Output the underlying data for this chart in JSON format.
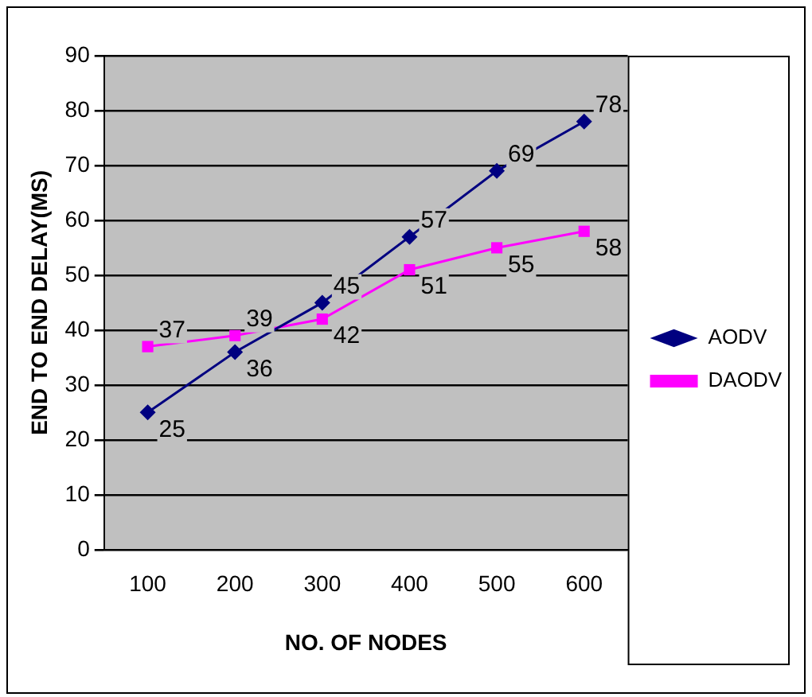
{
  "chart_data": {
    "type": "line",
    "xlabel": "NO. OF NODES",
    "ylabel": "END TO END DELAY(MS)",
    "categories": [
      "100",
      "200",
      "300",
      "400",
      "500",
      "600"
    ],
    "series": [
      {
        "name": "AODV",
        "color": "#000080",
        "marker": "diamond",
        "values": [
          25,
          36,
          45,
          57,
          69,
          78
        ]
      },
      {
        "name": "DAODV",
        "color": "#ff00ff",
        "marker": "square",
        "values": [
          37,
          39,
          42,
          51,
          55,
          58
        ]
      }
    ],
    "ylim": [
      0,
      90
    ],
    "yticks": [
      0,
      10,
      20,
      30,
      40,
      50,
      60,
      70,
      80,
      90
    ],
    "grid": "y",
    "legend": "right",
    "data_labels": true
  }
}
